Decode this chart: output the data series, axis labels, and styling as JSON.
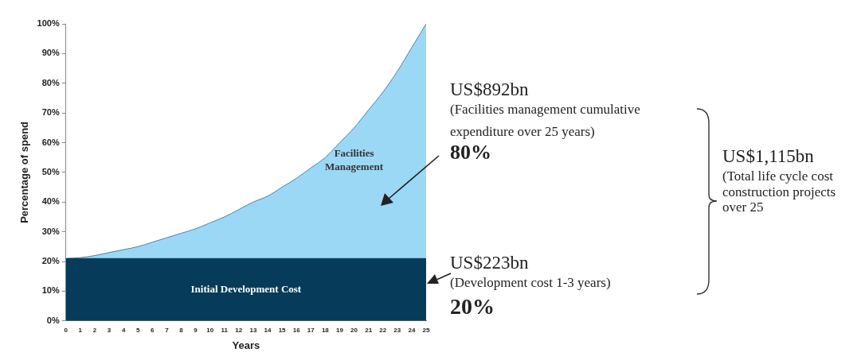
{
  "chart_data": {
    "type": "area",
    "stacked": true,
    "xlabel": "Years",
    "ylabel": "Percentage of spend",
    "x": [
      0,
      1,
      2,
      3,
      4,
      5,
      6,
      7,
      8,
      9,
      10,
      11,
      12,
      13,
      14,
      15,
      16,
      17,
      18,
      19,
      20,
      21,
      22,
      23,
      24,
      25
    ],
    "xlim": [
      0,
      25
    ],
    "xticks": [
      0,
      1,
      2,
      3,
      4,
      5,
      6,
      7,
      8,
      9,
      10,
      11,
      12,
      13,
      14,
      15,
      16,
      17,
      18,
      19,
      20,
      21,
      22,
      23,
      24,
      25
    ],
    "ylim": [
      0,
      100
    ],
    "yticks": [
      {
        "value": 0,
        "label": "0%"
      },
      {
        "value": 10,
        "label": "10%"
      },
      {
        "value": 20,
        "label": "20%"
      },
      {
        "value": 30,
        "label": "30%"
      },
      {
        "value": 40,
        "label": "40%"
      },
      {
        "value": 50,
        "label": "50%"
      },
      {
        "value": 60,
        "label": "60%"
      },
      {
        "value": 70,
        "label": "70%"
      },
      {
        "value": 80,
        "label": "80%"
      },
      {
        "value": 90,
        "label": "90%"
      },
      {
        "value": 100,
        "label": "100%"
      }
    ],
    "grid": false,
    "legend": false,
    "series": [
      {
        "name": "Initial Development Cost",
        "color": "#063b5a",
        "values": [
          21,
          21,
          21,
          21,
          21,
          21,
          21,
          21,
          21,
          21,
          21,
          21,
          21,
          21,
          21,
          21,
          21,
          21,
          21,
          21,
          21,
          21,
          21,
          21,
          21,
          21
        ]
      },
      {
        "name": "Facilities Management",
        "color": "#9bd8f5",
        "values": [
          0,
          0.3,
          1,
          2,
          3,
          4,
          5.5,
          7,
          8.5,
          10,
          12,
          14,
          16.5,
          19,
          21,
          24,
          27,
          30.5,
          34,
          39,
          44,
          50,
          56,
          63,
          71,
          79
        ]
      }
    ],
    "annotations": [
      "US$892bn",
      "(Facilities management cumulative expenditure over 25 years)",
      "80%",
      "US$223bn",
      "(Development cost 1-3 years)",
      "20%",
      "US$1,115bn",
      "(Total life cycle cost construction projects over 25"
    ]
  }
}
